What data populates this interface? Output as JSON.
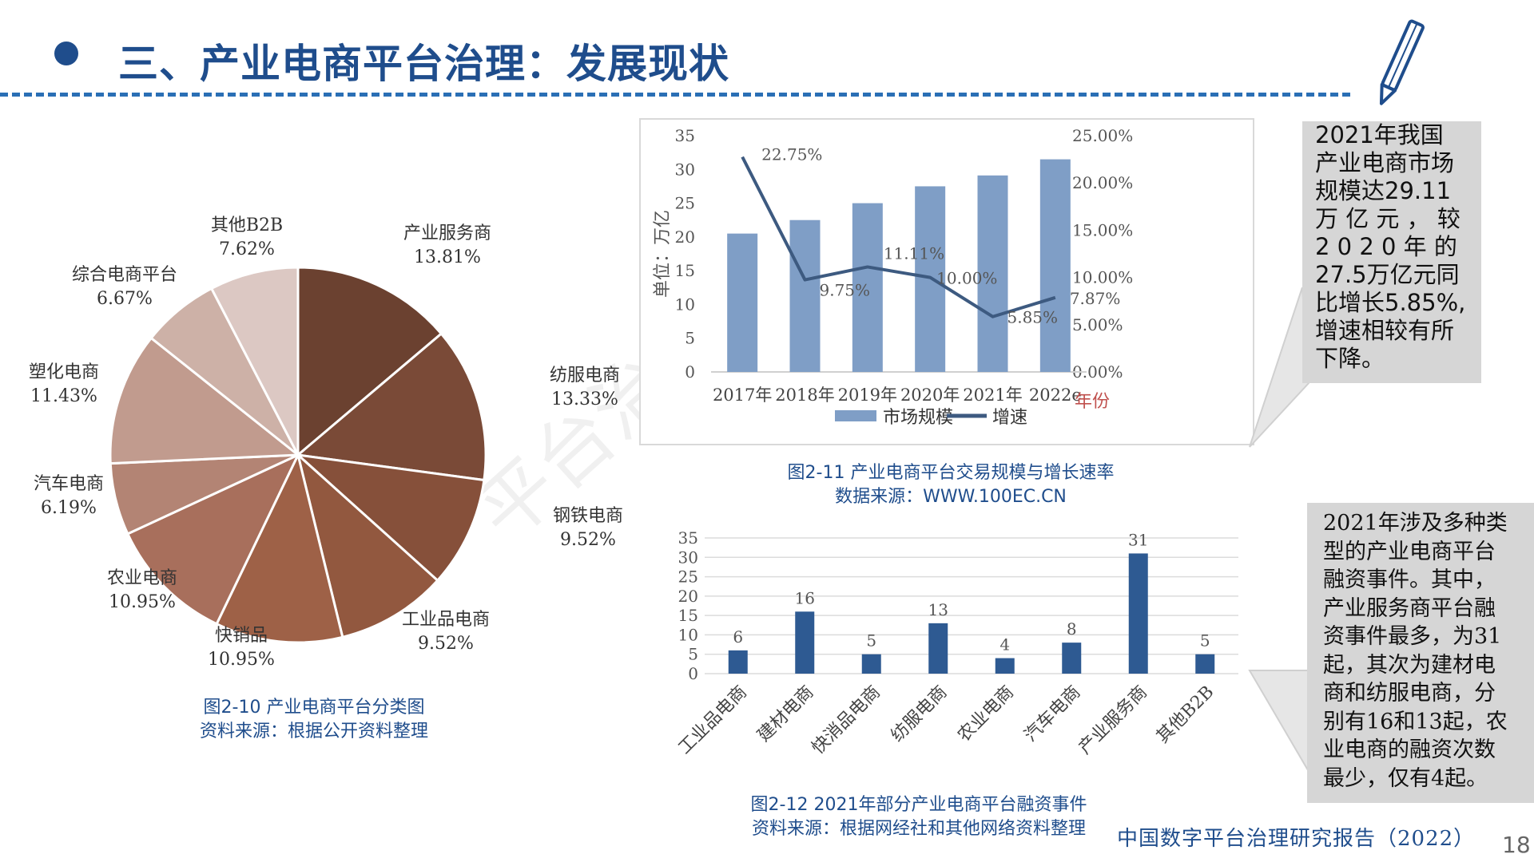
{
  "header": {
    "title": "三、产业电商平台治理：发展现状"
  },
  "pie": {
    "caption": "图2-10  产业电商平台分类图",
    "source": "资料来源：根据公开资料整理"
  },
  "bar_line": {
    "caption": "图2-11  产业电商平台交易规模与增长速率",
    "source": "数据来源：WWW.100EC.CN"
  },
  "bar2": {
    "caption": "图2-12  2021年部分产业电商平台融资事件",
    "source": "资料来源：根据网经社和其他网络资料整理"
  },
  "callout1": {
    "lines": [
      "2021年我国",
      "产业电商市场",
      "规模达29.11",
      "万 亿 元 ， 较",
      "2 0 2 0 年 的",
      "27.5万亿元同",
      "比增长5.85%,",
      "增速相较有所",
      "下降。"
    ]
  },
  "callout2": {
    "lines": [
      "2021年涉及多种类",
      "型的产业电商平台",
      "融资事件。其中，",
      "产业服务商平台融",
      "资事件最多，为31",
      "起，其次为建材电",
      "商和纺服电商，分",
      "别有16和13起，农",
      "业电商的融资次数",
      "最少，仅有4起。"
    ]
  },
  "watermark": "平台治理研究",
  "footer": {
    "report": "中国数字平台治理研究报告（2022）",
    "page": "18"
  },
  "colors": {
    "brand": "#1f4d8c",
    "bar_light": "#7f9ec6",
    "line_dark": "#3d5a80",
    "bar_dark": "#2e5a92"
  },
  "chart_data": [
    {
      "type": "pie",
      "categories": [
        "产业服务商",
        "纺服电商",
        "钢铁电商",
        "工业品电商",
        "快销品",
        "农业电商",
        "汽车电商",
        "塑化电商",
        "综合电商平台",
        "其他B2B"
      ],
      "values": [
        13.81,
        13.33,
        9.52,
        9.52,
        10.95,
        10.95,
        6.19,
        11.43,
        6.67,
        7.62
      ],
      "labels": [
        "13.81%",
        "13.33%",
        "9.52%",
        "9.52%",
        "10.95%",
        "10.95%",
        "6.19%",
        "11.43%",
        "6.67%",
        "7.62%"
      ],
      "colors": [
        "#6b4130",
        "#7a4a37",
        "#86503a",
        "#92583f",
        "#9e6147",
        "#a86f5c",
        "#b38474",
        "#c19b8e",
        "#cdb1a7",
        "#dcc8c3"
      ]
    },
    {
      "type": "bar+line",
      "categories": [
        "2017年",
        "2018年",
        "2019年",
        "2020年",
        "2021年",
        "2022e"
      ],
      "xlabel": "年份",
      "ylabel": "单位：万亿",
      "ylim": [
        0,
        35
      ],
      "yticks": [
        0,
        5,
        10,
        15,
        20,
        25,
        30,
        35
      ],
      "y2lim": [
        0,
        25
      ],
      "y2ticks": [
        "0.00%",
        "5.00%",
        "10.00%",
        "15.00%",
        "20.00%",
        "25.00%"
      ],
      "series": [
        {
          "name": "市场规模",
          "kind": "bar",
          "values": [
            20.5,
            22.5,
            25,
            27.5,
            29.11,
            31.5
          ]
        },
        {
          "name": "增速",
          "kind": "line",
          "axis": "right",
          "values": [
            22.75,
            9.75,
            11.11,
            10.0,
            5.85,
            7.87
          ],
          "labels": [
            "22.75%",
            "9.75%",
            "11.11%",
            "10.00%",
            "5.85%",
            "7.87%"
          ]
        }
      ],
      "grid": false,
      "legend": "bottom"
    },
    {
      "type": "bar",
      "categories": [
        "工业品电商",
        "建材电商",
        "快消品电商",
        "纺服电商",
        "农业电商",
        "汽车电商",
        "产业服务商",
        "其他B2B"
      ],
      "values": [
        6,
        16,
        5,
        13,
        4,
        8,
        31,
        5
      ],
      "ylim": [
        0,
        35
      ],
      "yticks": [
        0,
        5,
        10,
        15,
        20,
        25,
        30,
        35
      ],
      "grid": true
    }
  ]
}
